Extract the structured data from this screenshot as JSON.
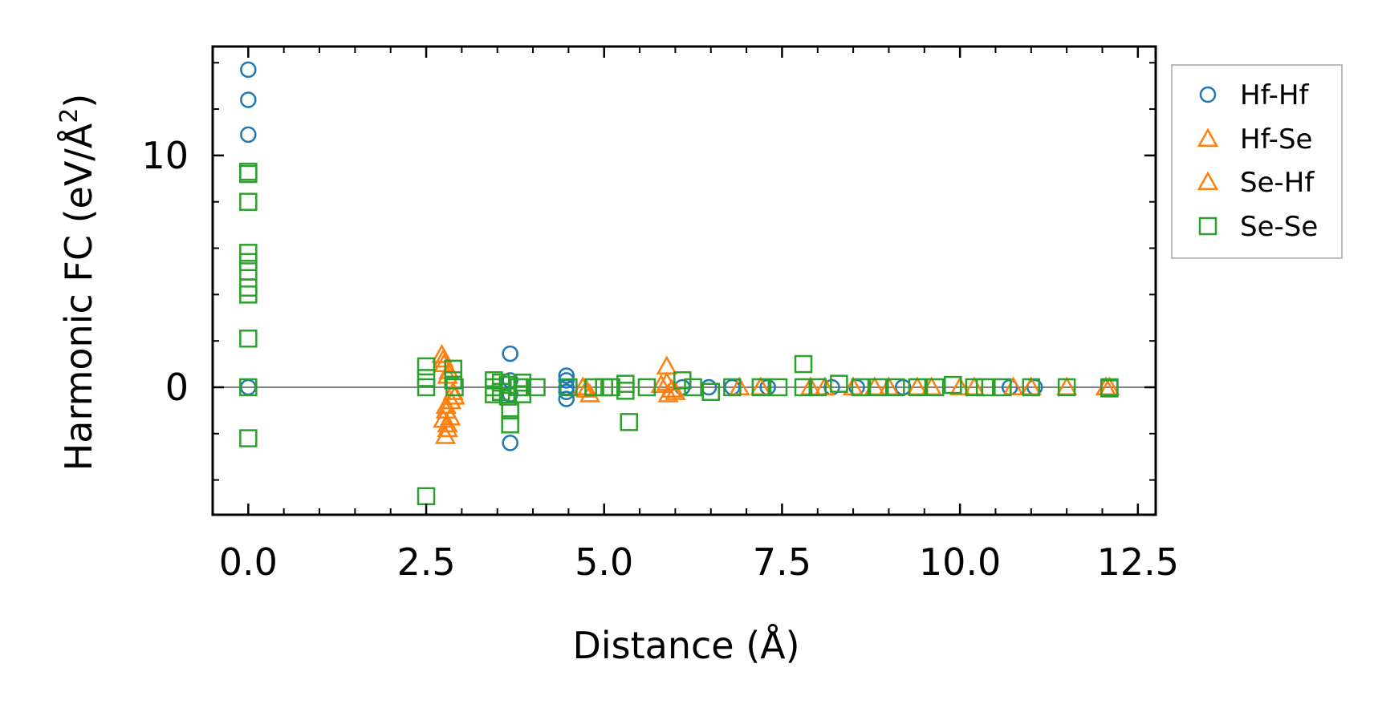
{
  "chart_data": {
    "type": "scatter",
    "xlabel": "Distance (Å)",
    "ylabel_main": "Harmonic FC (eV/Å",
    "ylabel_sup": "2",
    "ylabel_end": ")",
    "xlim": [
      -0.5,
      12.75
    ],
    "ylim": [
      -5.5,
      14.7
    ],
    "x_ticks": [
      0.0,
      2.5,
      5.0,
      7.5,
      10.0,
      12.5
    ],
    "x_tick_labels": [
      "0.0",
      "2.5",
      "5.0",
      "7.5",
      "10.0",
      "12.5"
    ],
    "y_ticks": [
      0,
      10
    ],
    "y_tick_labels": [
      "0",
      "10"
    ],
    "x_minor_step": 0.5,
    "y_minor_step": 2,
    "zero_line": true,
    "legend_position": "outside-top-right",
    "series": [
      {
        "name": "Hf-Hf",
        "marker": "circle",
        "color": "#1f77b4",
        "points": [
          [
            0,
            13.7
          ],
          [
            0,
            12.4
          ],
          [
            0,
            10.9
          ],
          [
            0,
            0
          ],
          [
            3.68,
            1.45
          ],
          [
            3.68,
            0.3
          ],
          [
            3.68,
            -0.3
          ],
          [
            3.68,
            -2.4
          ],
          [
            4.47,
            0.5
          ],
          [
            4.47,
            0.3
          ],
          [
            4.47,
            0
          ],
          [
            4.47,
            -0.2
          ],
          [
            4.47,
            -0.5
          ],
          [
            6.1,
            0
          ],
          [
            6.47,
            0
          ],
          [
            6.8,
            0
          ],
          [
            7.3,
            0
          ],
          [
            8.2,
            0
          ],
          [
            8.55,
            0
          ],
          [
            9.2,
            0
          ],
          [
            10.7,
            0
          ],
          [
            11.05,
            0
          ]
        ]
      },
      {
        "name": "Hf-Se",
        "marker": "triangle",
        "color": "#ff7f0e",
        "points": [
          [
            2.72,
            1.4
          ],
          [
            2.75,
            1.0
          ],
          [
            2.8,
            0.5
          ],
          [
            2.78,
            -1.0
          ],
          [
            2.74,
            -1.4
          ],
          [
            2.8,
            -1.6
          ],
          [
            2.77,
            -2.1
          ],
          [
            2.85,
            -0.6
          ],
          [
            2.88,
            -0.2
          ],
          [
            4.7,
            0
          ],
          [
            4.8,
            -0.3
          ],
          [
            5.88,
            0.9
          ],
          [
            5.88,
            0.2
          ],
          [
            5.9,
            -0.3
          ],
          [
            6.0,
            -0.2
          ],
          [
            7.2,
            0
          ],
          [
            7.9,
            0
          ],
          [
            8.5,
            0
          ],
          [
            9.0,
            0
          ],
          [
            9.6,
            0
          ],
          [
            10.2,
            0
          ],
          [
            10.75,
            0
          ],
          [
            11.5,
            0
          ],
          [
            12.05,
            0
          ]
        ]
      },
      {
        "name": "Se-Hf",
        "marker": "triangle",
        "color": "#ff7f0e",
        "points": [
          [
            2.74,
            1.2
          ],
          [
            2.82,
            0.7
          ],
          [
            2.78,
            -0.8
          ],
          [
            2.84,
            -1.3
          ],
          [
            2.8,
            -1.8
          ],
          [
            2.9,
            -0.4
          ],
          [
            4.75,
            -0.1
          ],
          [
            5.8,
            0.1
          ],
          [
            5.95,
            -0.1
          ],
          [
            6.9,
            0
          ],
          [
            8.1,
            0
          ],
          [
            8.8,
            0
          ],
          [
            9.4,
            0
          ],
          [
            10.0,
            0
          ],
          [
            11.0,
            0
          ],
          [
            12.1,
            0
          ]
        ]
      },
      {
        "name": "Se-Se",
        "marker": "square",
        "color": "#2ca02c",
        "points": [
          [
            0,
            9.3
          ],
          [
            0,
            9.2
          ],
          [
            0,
            8.0
          ],
          [
            0,
            5.8
          ],
          [
            0,
            5.4
          ],
          [
            0,
            5.0
          ],
          [
            0,
            4.3
          ],
          [
            0,
            4.0
          ],
          [
            0,
            2.1
          ],
          [
            0,
            0
          ],
          [
            0,
            -2.2
          ],
          [
            2.5,
            0.9
          ],
          [
            2.5,
            0.4
          ],
          [
            2.5,
            0
          ],
          [
            2.5,
            -4.7
          ],
          [
            2.88,
            0.8
          ],
          [
            2.88,
            0.3
          ],
          [
            2.9,
            0
          ],
          [
            3.45,
            0.3
          ],
          [
            3.45,
            0
          ],
          [
            3.45,
            -0.3
          ],
          [
            3.55,
            0.2
          ],
          [
            3.55,
            -0.2
          ],
          [
            3.65,
            0.1
          ],
          [
            3.65,
            -0.4
          ],
          [
            3.68,
            -1.0
          ],
          [
            3.68,
            -1.6
          ],
          [
            3.8,
            0
          ],
          [
            3.85,
            0.2
          ],
          [
            3.85,
            -0.3
          ],
          [
            4.05,
            0
          ],
          [
            4.5,
            0
          ],
          [
            4.85,
            0
          ],
          [
            5.0,
            0
          ],
          [
            5.1,
            0
          ],
          [
            5.3,
            0.15
          ],
          [
            5.3,
            -0.15
          ],
          [
            5.35,
            -1.5
          ],
          [
            5.6,
            0
          ],
          [
            6.1,
            0.3
          ],
          [
            6.25,
            0
          ],
          [
            6.5,
            -0.2
          ],
          [
            6.8,
            0
          ],
          [
            7.2,
            0
          ],
          [
            7.45,
            0
          ],
          [
            7.8,
            1.0
          ],
          [
            7.8,
            0
          ],
          [
            8.0,
            0
          ],
          [
            8.3,
            0.15
          ],
          [
            8.6,
            0
          ],
          [
            8.85,
            0
          ],
          [
            9.1,
            0
          ],
          [
            9.4,
            0
          ],
          [
            9.65,
            0
          ],
          [
            9.9,
            0.1
          ],
          [
            10.2,
            0
          ],
          [
            10.35,
            0
          ],
          [
            10.6,
            0
          ],
          [
            11.0,
            0
          ],
          [
            11.5,
            0
          ],
          [
            12.1,
            0
          ],
          [
            12.1,
            -0.05
          ]
        ]
      }
    ]
  }
}
